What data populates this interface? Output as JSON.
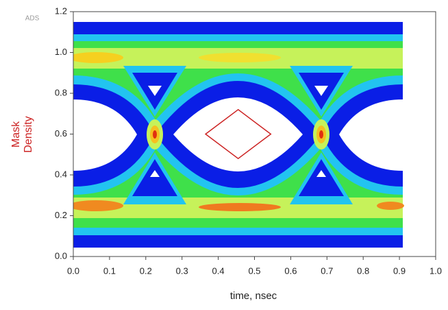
{
  "chart_data": {
    "type": "eye",
    "watermark": "ADS",
    "xlabel": "time, nsec",
    "ylabel": [
      "Mask",
      "Density"
    ],
    "ylabel_color": "#cc2222",
    "xlim": [
      0,
      1
    ],
    "xticks": [
      {
        "value": 0,
        "label": "0.0"
      },
      0.1,
      0.2,
      0.3,
      0.4,
      0.5,
      0.6,
      0.7,
      0.8,
      0.9,
      {
        "value": 1,
        "label": "1.0"
      }
    ],
    "ylim": [
      0,
      1.2
    ],
    "yticks": [
      {
        "value": 0,
        "label": "0.0"
      },
      0.2,
      0.4,
      0.6,
      0.8,
      {
        "value": 1,
        "label": "1.0"
      },
      1.2
    ],
    "grid": false,
    "mask": {
      "color": "#cc2222",
      "x": [
        0.365,
        0.455,
        0.545,
        0.455
      ],
      "y": [
        0.6,
        0.72,
        0.6,
        0.48
      ]
    }
  }
}
